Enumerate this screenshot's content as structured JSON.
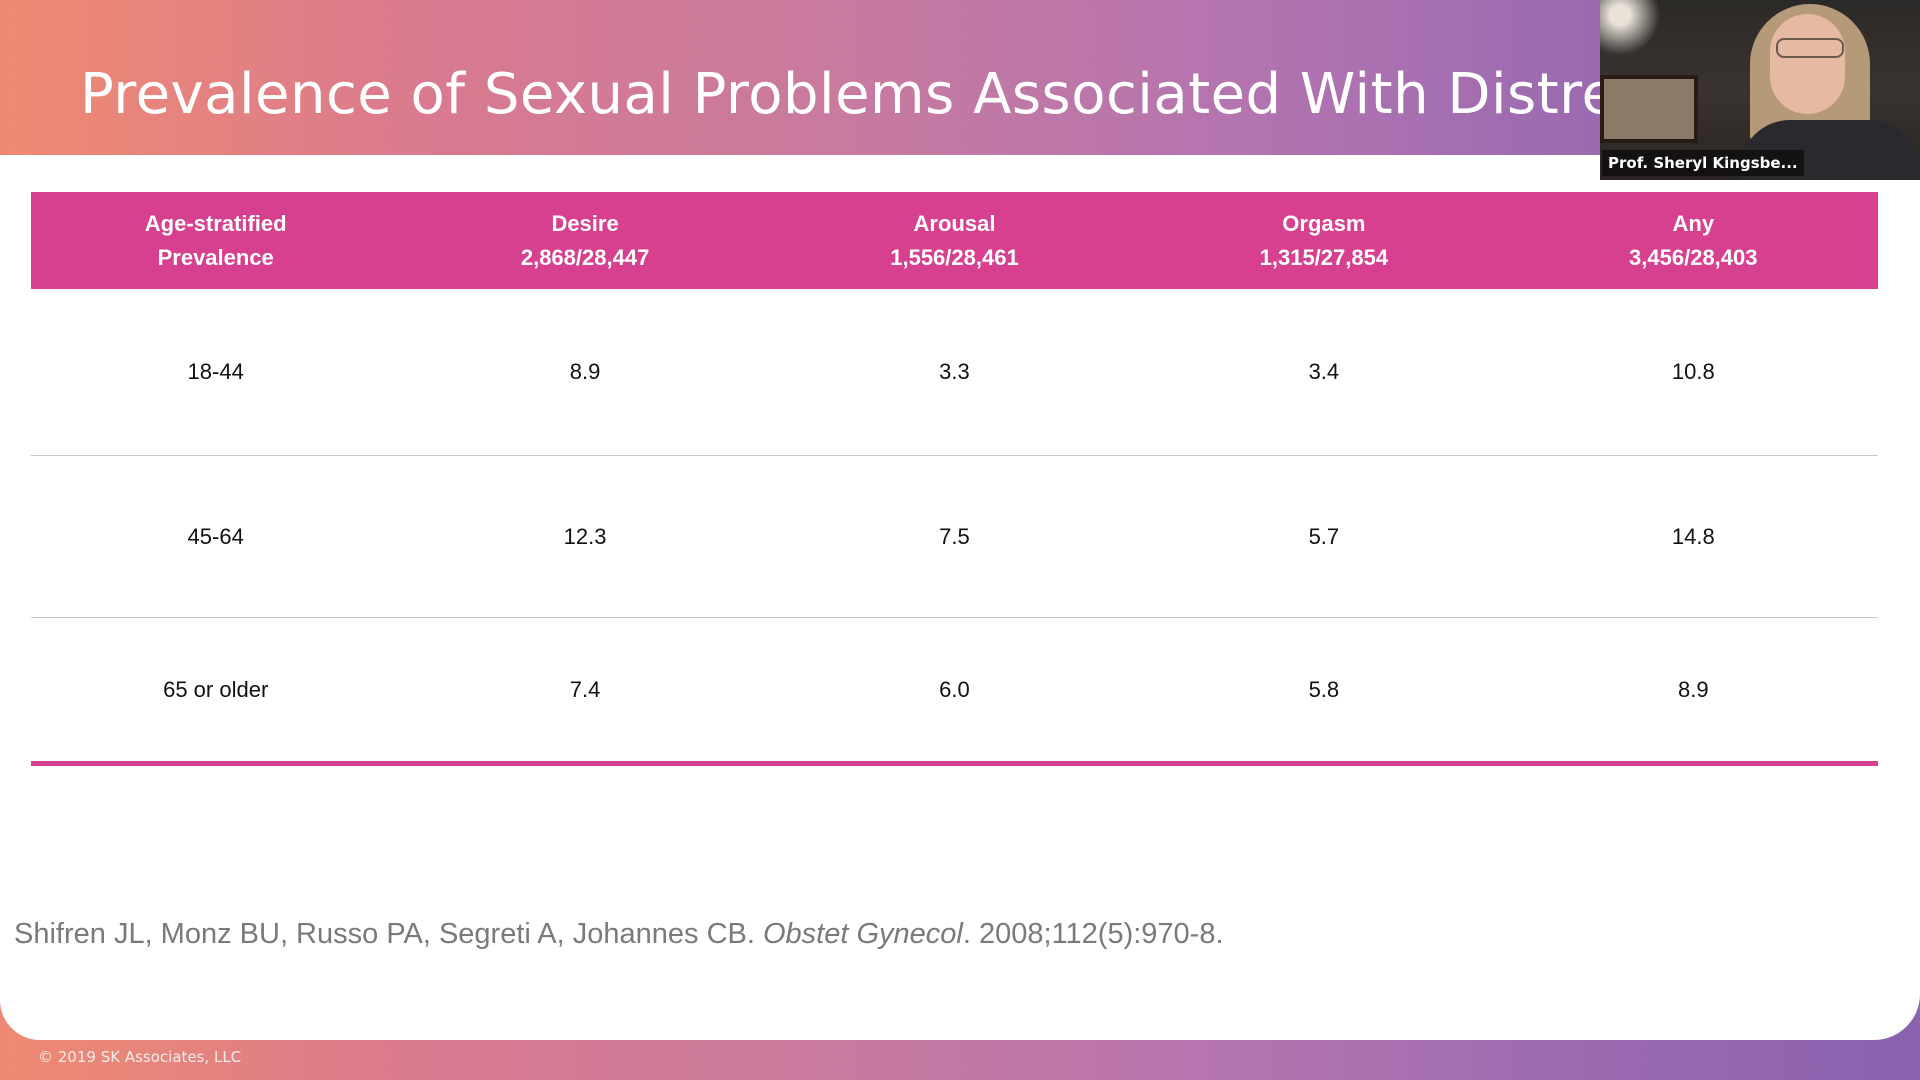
{
  "slide": {
    "title": "Prevalence of Sexual Problems Associated With Distress (PRESIDE)"
  },
  "table": {
    "headers": [
      {
        "line1": "Age-stratified",
        "line2": "Prevalence"
      },
      {
        "line1": "Desire",
        "line2": "2,868/28,447"
      },
      {
        "line1": "Arousal",
        "line2": "1,556/28,461"
      },
      {
        "line1": "Orgasm",
        "line2": "1,315/27,854"
      },
      {
        "line1": "Any",
        "line2": "3,456/28,403"
      }
    ],
    "rows": [
      [
        "18-44",
        "8.9",
        "3.3",
        "3.4",
        "10.8"
      ],
      [
        "45-64",
        "12.3",
        "7.5",
        "5.7",
        "14.8"
      ],
      [
        "65 or older",
        "7.4",
        "6.0",
        "5.8",
        "8.9"
      ]
    ]
  },
  "citation": {
    "authors": "Shifren JL, Monz BU, Russo PA, Segreti A, Johannes CB.",
    "journal": "Obstet Gynecol",
    "details": ". 2008;112(5):970-8."
  },
  "footer": {
    "copyright": "© 2019 SK Associates, LLC"
  },
  "webcam": {
    "name": "Prof. Sheryl Kingsbe..."
  },
  "colors": {
    "accent": "#d6408f",
    "gradient_start": "#ef8a72",
    "gradient_end": "#8a62ad"
  }
}
